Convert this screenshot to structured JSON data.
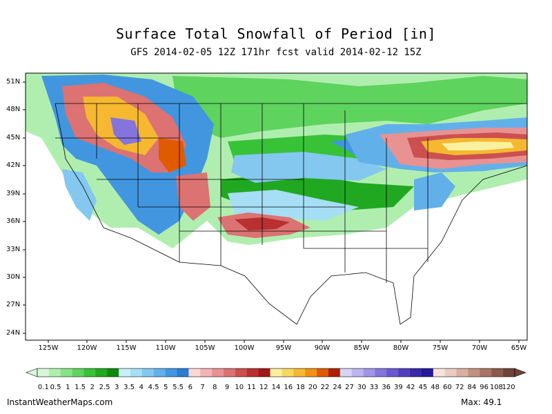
{
  "title": "Surface Total Snowfall of Period [in]",
  "subtitle": "GFS 2014-02-05 12Z 171hr fcst valid 2014-02-12 15Z",
  "credit": "InstantWeatherMaps.com",
  "max_label": "Max:  49.1",
  "lat_labels": [
    "51N",
    "48N",
    "45N",
    "42N",
    "39N",
    "36N",
    "33N",
    "30N",
    "27N",
    "24N"
  ],
  "lon_labels": [
    "125W",
    "120W",
    "115W",
    "110W",
    "105W",
    "100W",
    "95W",
    "90W",
    "85W",
    "80W",
    "75W",
    "70W",
    "65W"
  ],
  "colorbar": {
    "labels": [
      "0.1",
      "0.5",
      "1",
      "1.5",
      "2",
      "2.5",
      "3",
      "3.5",
      "4",
      "4.5",
      "5",
      "5.5",
      "6",
      "7",
      "8",
      "9",
      "10",
      "11",
      "12",
      "14",
      "16",
      "18",
      "20",
      "22",
      "24",
      "27",
      "30",
      "33",
      "36",
      "39",
      "42",
      "45",
      "48",
      "60",
      "72",
      "84",
      "96",
      "108",
      "120"
    ],
    "colors": [
      "#d8f5d8",
      "#b0eeb0",
      "#86e386",
      "#5ed35e",
      "#38c238",
      "#20a820",
      "#0a8a0a",
      "#c8f0f8",
      "#a6def5",
      "#84c8f0",
      "#62b0ea",
      "#4296e0",
      "#2a7cd4",
      "#fbd8d8",
      "#f4b4b4",
      "#e89292",
      "#dc7272",
      "#cc5050",
      "#b83030",
      "#a01818",
      "#fbf0a0",
      "#f8d860",
      "#f5b830",
      "#f29010",
      "#e05a00",
      "#b02000",
      "#d8d4f4",
      "#bcb4ee",
      "#a094e6",
      "#8474dc",
      "#6a58d0",
      "#5040c0",
      "#3a28a8",
      "#26189a",
      "#f4e4dc",
      "#e8ccc0",
      "#d8b0a0",
      "#c09080",
      "#a87464",
      "#8c5a4a",
      "#704238"
    ]
  },
  "legend_map": {
    "light_green": "0.1-3",
    "blue": "3-6",
    "red": "6-12",
    "yellow_orange": "12-24",
    "purple": "24-48",
    "brown": "48-120"
  }
}
